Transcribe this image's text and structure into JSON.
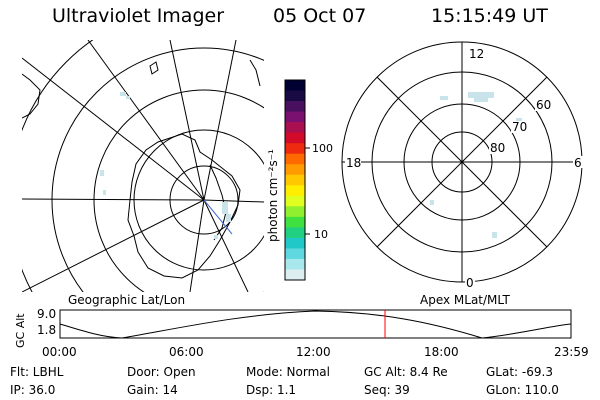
{
  "header": {
    "title": "Ultraviolet Imager",
    "date": "05 Oct 07",
    "time": "15:15:49 UT"
  },
  "colorbar": {
    "label": "photon cm⁻²s⁻¹",
    "ticks": [
      "100",
      "10"
    ],
    "colors": [
      "#000033",
      "#1a0a44",
      "#4a1060",
      "#7a1070",
      "#aa1050",
      "#d40a2a",
      "#ee2a10",
      "#ff6a00",
      "#ff9a00",
      "#ffc800",
      "#ffee00",
      "#e0ff20",
      "#90f030",
      "#40e040",
      "#20d080",
      "#20c8c8",
      "#60d8e0",
      "#a8e8ec",
      "#dceef0"
    ]
  },
  "left_panel": {
    "label": "Geographic Lat/Lon"
  },
  "right_panel": {
    "label": "Apex MLat/MLT",
    "mlt": {
      "top": "12",
      "bottom": "0",
      "left": "18",
      "right": "6"
    },
    "lat": [
      "60",
      "70",
      "80"
    ]
  },
  "altitude_strip": {
    "ylabel": "GC Alt",
    "ymax": "9.0",
    "ymin": "1.8",
    "xticks": [
      "00:00",
      "06:00",
      "12:00",
      "18:00",
      "23:59"
    ],
    "marker_color": "#ff0000"
  },
  "info": {
    "flt": "Flt: LBHL",
    "door": "Door: Open",
    "mode": "Mode: Normal",
    "gcalt": "GC Alt: 8.4 Re",
    "glat": "GLat: -69.3",
    "ip": "IP: 36.0",
    "gain": "Gain: 14",
    "dsp": "Dsp:    1.1",
    "seq": "Seq: 39",
    "glon": "GLon: 110.0"
  }
}
